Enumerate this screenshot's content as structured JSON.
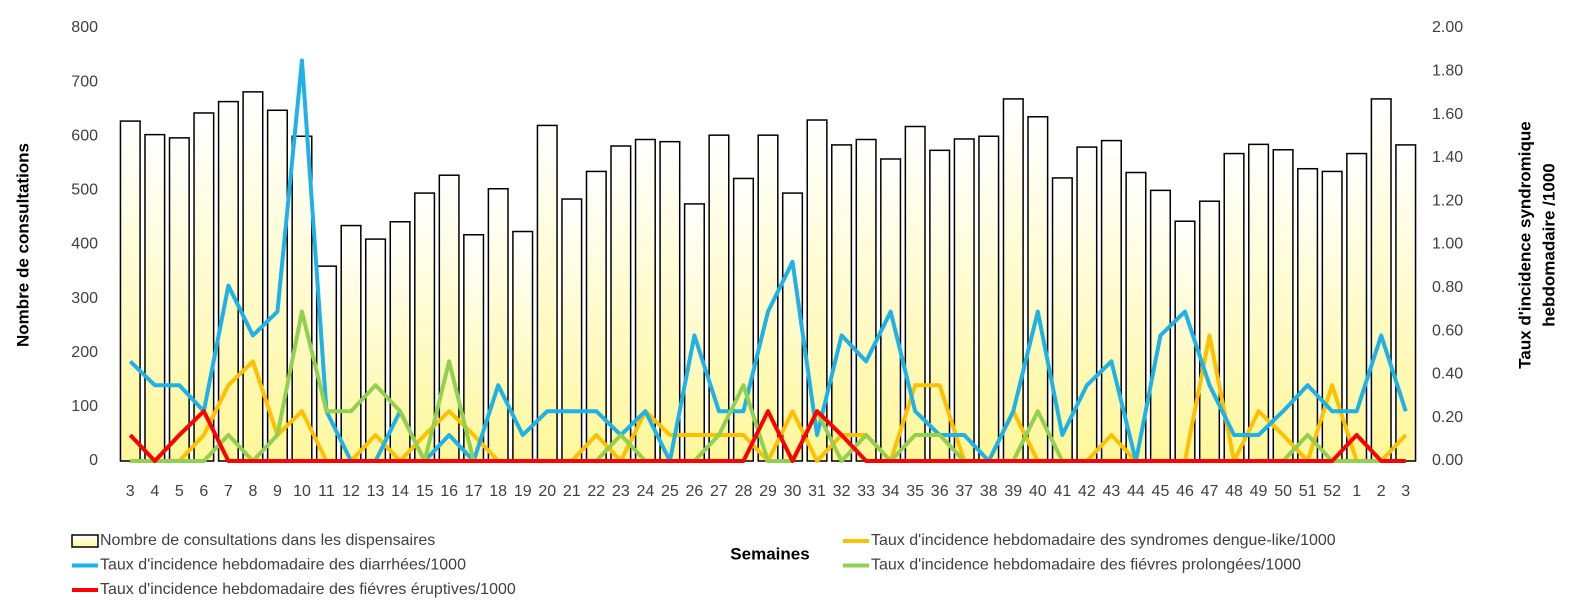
{
  "chart_data": {
    "type": "combo",
    "xlabel": "Semaines",
    "ylabel": "Nombre de consultations",
    "y2label": [
      "Taux d'incidence syndromique",
      "hebdomadaire /1000"
    ],
    "categories": [
      "3",
      "4",
      "5",
      "6",
      "7",
      "8",
      "9",
      "10",
      "11",
      "12",
      "13",
      "14",
      "15",
      "16",
      "17",
      "18",
      "19",
      "20",
      "21",
      "22",
      "23",
      "24",
      "25",
      "26",
      "27",
      "28",
      "29",
      "30",
      "31",
      "32",
      "33",
      "34",
      "35",
      "36",
      "37",
      "38",
      "39",
      "40",
      "41",
      "42",
      "43",
      "44",
      "45",
      "46",
      "47",
      "48",
      "49",
      "50",
      "51",
      "52",
      "1",
      "2",
      "3"
    ],
    "ylim": [
      0,
      800
    ],
    "yticks": [
      0,
      100,
      200,
      300,
      400,
      500,
      600,
      700,
      800
    ],
    "y2lim": [
      0,
      2
    ],
    "y2ticks": [
      {
        "value": 0,
        "label": "0.00"
      },
      {
        "value": 0.2,
        "label": "0.20"
      },
      {
        "value": 0.4,
        "label": "0.40"
      },
      {
        "value": 0.6,
        "label": "0.60"
      },
      {
        "value": 0.8,
        "label": "0.80"
      },
      {
        "value": 1,
        "label": "1.00"
      },
      {
        "value": 1.2,
        "label": "1.20"
      },
      {
        "value": 1.4,
        "label": "1.40"
      },
      {
        "value": 1.6,
        "label": "1.60"
      },
      {
        "value": 1.8,
        "label": "1.80"
      },
      {
        "value": 2,
        "label": "2.00"
      }
    ],
    "series": [
      {
        "name": "Nombre de consultations dans les dispensaires",
        "type": "bar",
        "axis": "y",
        "color": "#fff799",
        "values": [
          628,
          603,
          597,
          643,
          664,
          682,
          648,
          600,
          360,
          435,
          410,
          442,
          495,
          528,
          418,
          503,
          424,
          620,
          484,
          535,
          582,
          594,
          590,
          475,
          602,
          522,
          602,
          495,
          630,
          584,
          594,
          558,
          618,
          574,
          595,
          600,
          669,
          636,
          523,
          580,
          592,
          533,
          500,
          443,
          480,
          568,
          585,
          575,
          540,
          535,
          568,
          669,
          584
        ]
      },
      {
        "name": "Taux d'incidence hebdomadaire des syndromes dengue-like/1000",
        "type": "line",
        "axis": "y2",
        "color": "#ffc000",
        "values": [
          0,
          0,
          0,
          0.12,
          0.35,
          0.46,
          0.12,
          0.23,
          0,
          0,
          0.12,
          0,
          0.12,
          0.23,
          0.12,
          0,
          0,
          0,
          0,
          0.12,
          0,
          0.23,
          0.12,
          0.12,
          0.12,
          0.12,
          0,
          0.23,
          0,
          0.12,
          0.12,
          0,
          0.35,
          0.35,
          0,
          0,
          0.23,
          0,
          0,
          0,
          0.12,
          0,
          0,
          0,
          0.58,
          0,
          0.23,
          0.12,
          0,
          0.35,
          0,
          0,
          0.12
        ]
      },
      {
        "name": "Taux d'incidence hebdomadaire des diarrhées/1000",
        "type": "line",
        "axis": "y2",
        "color": "#1fb2e6",
        "values": [
          0.46,
          0.35,
          0.35,
          0.23,
          0.81,
          0.58,
          0.69,
          1.85,
          0.23,
          0,
          0,
          0.23,
          0,
          0.12,
          0,
          0.35,
          0.12,
          0.23,
          0.23,
          0.23,
          0.12,
          0.23,
          0,
          0.58,
          0.23,
          0.23,
          0.69,
          0.92,
          0.12,
          0.58,
          0.46,
          0.69,
          0.23,
          0.12,
          0.12,
          0,
          0.23,
          0.69,
          0.12,
          0.35,
          0.46,
          0,
          0.58,
          0.69,
          0.35,
          0.12,
          0.12,
          0.23,
          0.35,
          0.23,
          0.23,
          0.58,
          0.23
        ]
      },
      {
        "name": "Taux d'incidence hebdomadaire des fiévres prolongées/1000",
        "type": "line",
        "axis": "y2",
        "color": "#92d050",
        "values": [
          0,
          0,
          0,
          0,
          0.12,
          0,
          0.12,
          0.69,
          0.23,
          0.23,
          0.35,
          0.23,
          0,
          0.46,
          0,
          0,
          0,
          0,
          0,
          0,
          0.12,
          0,
          0,
          0,
          0.12,
          0.35,
          0,
          0,
          0.23,
          0,
          0.12,
          0,
          0.12,
          0.12,
          0,
          0,
          0,
          0.23,
          0,
          0,
          0,
          0,
          0,
          0,
          0,
          0,
          0,
          0,
          0.12,
          0,
          0,
          0,
          0
        ]
      },
      {
        "name": "Taux d'incidence hebdomadaire des fiévres éruptives/1000",
        "type": "line",
        "axis": "y2",
        "color": "#ff0000",
        "values": [
          0.12,
          0,
          0.12,
          0.23,
          0,
          0,
          0,
          0,
          0,
          0,
          0,
          0,
          0,
          0,
          0,
          0,
          0,
          0,
          0,
          0,
          0,
          0,
          0,
          0,
          0,
          0,
          0.23,
          0,
          0.23,
          0.12,
          0,
          0,
          0,
          0,
          0,
          0,
          0,
          0,
          0,
          0,
          0,
          0,
          0,
          0,
          0,
          0,
          0,
          0,
          0,
          0,
          0.12,
          0,
          0
        ]
      }
    ]
  }
}
